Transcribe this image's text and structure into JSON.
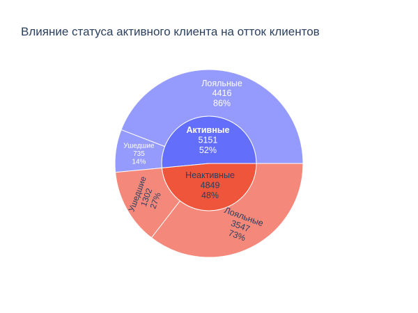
{
  "chart_data": {
    "type": "sunburst",
    "title": "Влияние статуса активного клиента на отток клиентов",
    "nodes": [
      {
        "label": "Активные",
        "value": 5151,
        "percent": "52%",
        "color": "#636efa",
        "children": [
          {
            "label": "Лояльные",
            "value": 4416,
            "percent": "86%",
            "color": "#959bfc"
          },
          {
            "label": "Ушедшие",
            "value": 735,
            "percent": "14%",
            "color": "#959bfc"
          }
        ]
      },
      {
        "label": "Неактивные",
        "value": 4849,
        "percent": "48%",
        "color": "#ef553b",
        "children": [
          {
            "label": "Ушедшие",
            "value": 1302,
            "percent": "27%",
            "color": "#f4887a"
          },
          {
            "label": "Лояльные",
            "value": 3547,
            "percent": "73%",
            "color": "#f4887a"
          }
        ]
      }
    ]
  }
}
